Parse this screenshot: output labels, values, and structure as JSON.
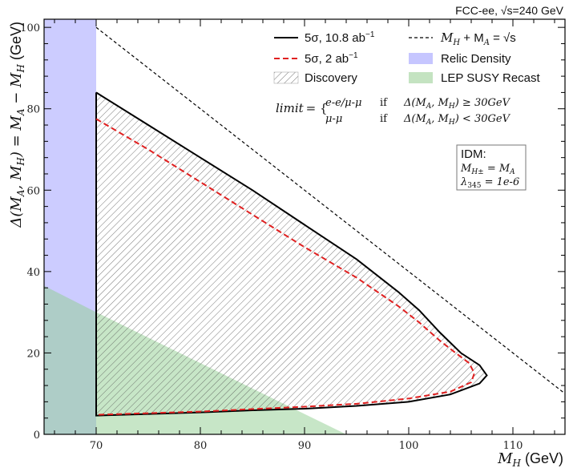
{
  "chart_data": {
    "type": "line",
    "header": "FCC-ee, √s=240 GeV",
    "xlabel_math": "M",
    "xlabel_sub": "H",
    "xlabel_unit": "(GeV)",
    "ylabel_main": "Δ(M",
    "ylabel_sub1": "A",
    "ylabel_mid": ", M",
    "ylabel_sub2": "H",
    "ylabel_eq": ") = M",
    "ylabel_sub3": "A",
    "ylabel_minus": " − M",
    "ylabel_sub4": "H",
    "ylabel_unit": "(GeV)",
    "xlim": [
      65,
      115
    ],
    "ylim": [
      0,
      102
    ],
    "xticks": [
      70,
      80,
      90,
      100,
      110
    ],
    "yticks": [
      0,
      20,
      40,
      60,
      80,
      100
    ],
    "regions": {
      "relic_density": {
        "x": [
          65,
          70
        ],
        "y": [
          0,
          102
        ],
        "color": "#9999ff"
      },
      "lep_susy": {
        "polygon": [
          [
            65,
            36.5
          ],
          [
            70,
            30
          ],
          [
            94,
            0
          ],
          [
            65,
            0
          ]
        ],
        "color": "#8fce8f"
      }
    },
    "series": [
      {
        "name": "5σ, 10.8 ab⁻¹",
        "style": "solid",
        "color": "#000000",
        "points": [
          [
            70,
            84
          ],
          [
            75,
            76
          ],
          [
            80,
            68
          ],
          [
            85,
            60
          ],
          [
            90,
            51.5
          ],
          [
            95,
            43
          ],
          [
            99,
            35
          ],
          [
            101,
            30.5
          ],
          [
            103,
            25
          ],
          [
            105,
            20
          ],
          [
            106.8,
            17
          ],
          [
            107.5,
            14.5
          ],
          [
            106.8,
            12.5
          ],
          [
            104,
            9.8
          ],
          [
            100,
            8
          ],
          [
            95,
            7
          ],
          [
            90,
            6.3
          ],
          [
            85,
            5.9
          ],
          [
            80,
            5.4
          ],
          [
            75,
            5.0
          ],
          [
            70,
            4.6
          ]
        ]
      },
      {
        "name": "5σ, 2 ab⁻¹",
        "style": "dashed",
        "color": "#e02020",
        "points": [
          [
            70,
            77.5
          ],
          [
            75,
            70
          ],
          [
            80,
            62
          ],
          [
            85,
            54
          ],
          [
            90,
            46
          ],
          [
            95,
            38.5
          ],
          [
            99,
            31.5
          ],
          [
            101,
            27.5
          ],
          [
            103,
            23
          ],
          [
            104.5,
            20
          ],
          [
            105.8,
            17.5
          ],
          [
            106.3,
            15
          ],
          [
            106,
            12.8
          ],
          [
            104,
            10.5
          ],
          [
            100,
            8.8
          ],
          [
            95,
            7.5
          ],
          [
            90,
            6.8
          ],
          [
            85,
            6.2
          ],
          [
            80,
            5.6
          ],
          [
            75,
            5.2
          ],
          [
            70,
            4.8
          ]
        ]
      },
      {
        "name": "M_H + M_A = √s",
        "style": "dotted-dashed",
        "color": "#000000",
        "points": [
          [
            70,
            100
          ],
          [
            115,
            10
          ]
        ]
      }
    ],
    "legend": {
      "solid": "5σ, 10.8 ab",
      "solid_sup": "−1",
      "dashed": "5σ, 2 ab",
      "dashed_sup": "−1",
      "hatch": "Discovery",
      "kin": "M",
      "kin_rest": " + M",
      "kin_eq": " = √s",
      "relic": "Relic Density",
      "lep": "LEP SUSY Recast"
    },
    "limit_text": {
      "label": "limit",
      "eq": "= {",
      "row1_a": "e-e/μ-μ",
      "row1_b": "if",
      "row1_c": "Δ(M",
      "row1_d": ", M",
      "row1_e": ") ≥ 30GeV",
      "row2_a": "μ-μ",
      "row2_b": "if",
      "row2_c": "Δ(M",
      "row2_d": ", M",
      "row2_e": ") < 30GeV"
    },
    "idm_box": {
      "title": "IDM:",
      "line1": "M",
      "line1_sub": "H±",
      "line1_rest": " = M",
      "line1_sub2": "A",
      "line2": "λ",
      "line2_sub": "345",
      "line2_rest": " = 1e-6"
    }
  }
}
